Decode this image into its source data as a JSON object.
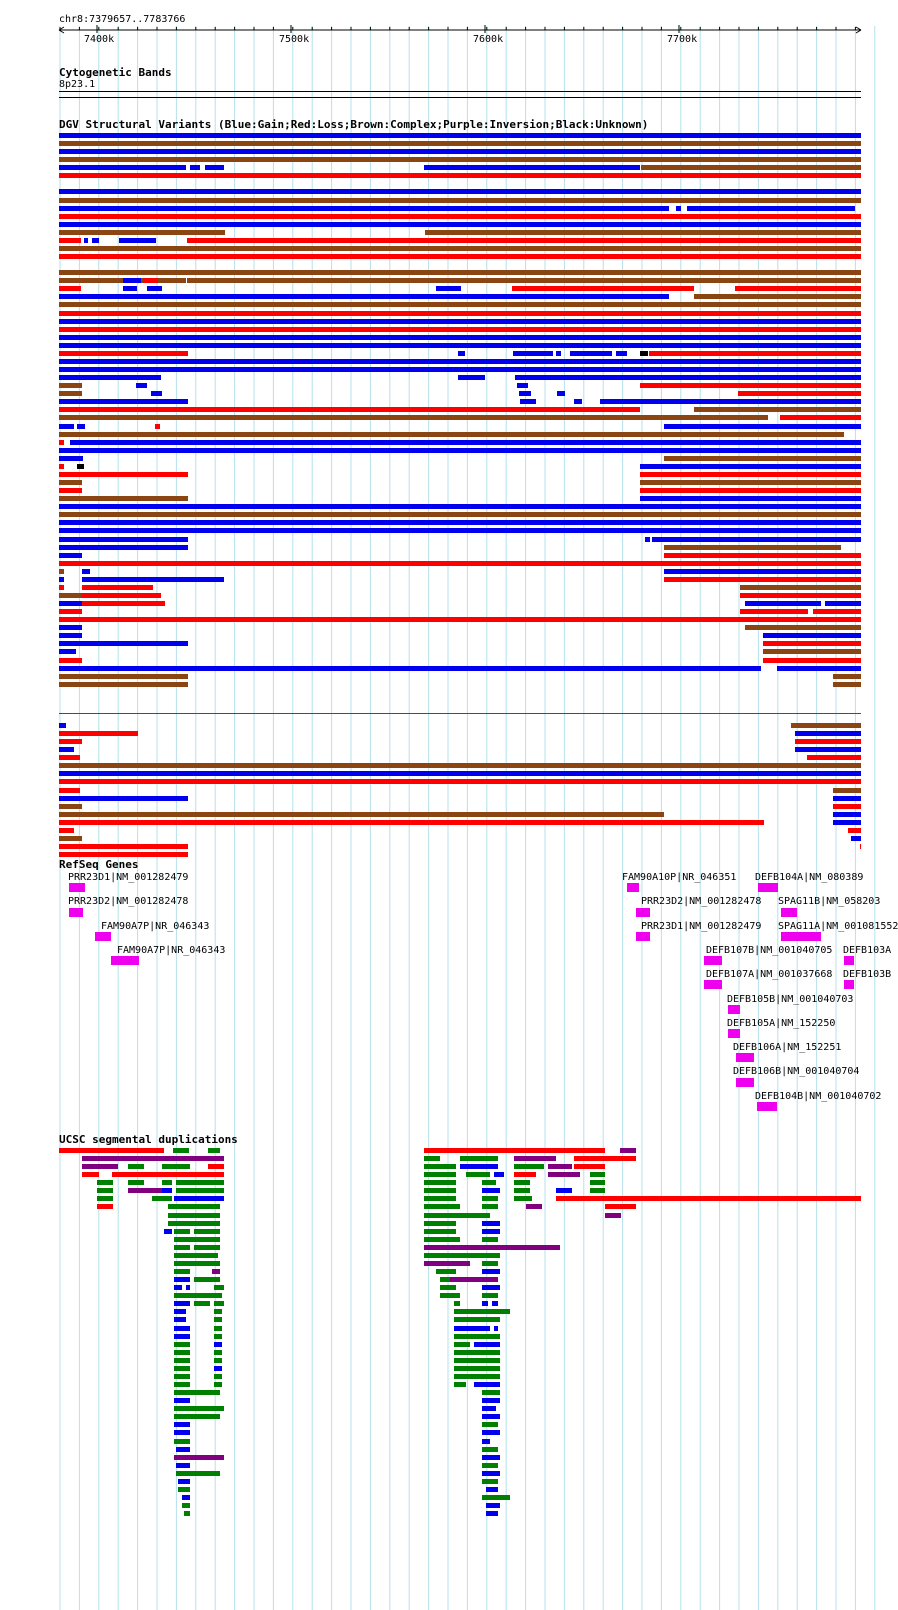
{
  "header": {
    "position": "chr8:7379657..7783766",
    "ticks": [
      "7400k",
      "7500k",
      "7600k",
      "7700k"
    ]
  },
  "cytoband": {
    "title": "Cytogenetic Bands",
    "band": "8p23.1"
  },
  "dgv": {
    "title": "DGV Structural Variants (Blue:Gain;Red:Loss;Brown:Complex;Purple:Inversion;Black:Unknown)",
    "colors": {
      "gain": "#0000ee",
      "loss": "#ff0000",
      "complex": "#8b4513",
      "inversion": "#800080",
      "unknown": "#000000"
    }
  },
  "refseq": {
    "title": "RefSeq Genes",
    "color": "#ee00ee",
    "genes": [
      "PRR23D1|NM_001282479",
      "PRR23D2|NM_001282478",
      "FAM90A7P|NR_046343",
      "FAM90A7P|NR_046343",
      "FAM90A10P|NR_046351",
      "PRR23D2|NM_001282478",
      "PRR23D1|NM_001282479",
      "DEFB104A|NM_080389",
      "SPAG11B|NM_058203",
      "SPAG11A|NM_001081552",
      "DEFB107B|NM_001040705",
      "DEFB103A",
      "DEFB107A|NM_001037668",
      "DEFB103B",
      "DEFB105B|NM_001040703",
      "DEFB105A|NM_152250",
      "DEFB106A|NM_152251",
      "DEFB106B|NM_001040704",
      "DEFB104B|NM_001040702"
    ]
  },
  "segdup": {
    "title": "UCSC segmental duplications",
    "colors": {
      "red": "#ff0000",
      "purple": "#800080",
      "green": "#008000",
      "blue": "#0000ee"
    }
  }
}
